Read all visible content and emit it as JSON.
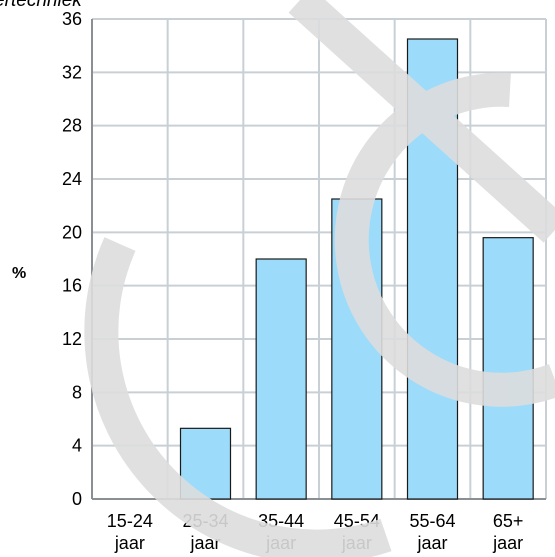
{
  "chart_data": {
    "type": "bar",
    "title": "Curvertechniek",
    "ylabel": "%",
    "xlabel": "",
    "categories": [
      [
        "15-24",
        "jaar"
      ],
      [
        "25-34",
        "jaar"
      ],
      [
        "35-44",
        "jaar"
      ],
      [
        "45-54",
        "jaar"
      ],
      [
        "55-64",
        "jaar"
      ],
      [
        "65+",
        "jaar"
      ]
    ],
    "values": [
      0,
      5.3,
      18.0,
      22.5,
      34.5,
      19.6
    ],
    "ylim": [
      0,
      36
    ],
    "yticks": [
      0,
      4,
      8,
      12,
      16,
      20,
      24,
      28,
      32,
      36
    ],
    "grid": true,
    "colors": {
      "bar_fill": "#9ddbfb",
      "bar_stroke": "#1a1a1a",
      "grid": "#c8d0d6",
      "axis": "#8a8f94",
      "watermark": "#dddddd"
    }
  }
}
